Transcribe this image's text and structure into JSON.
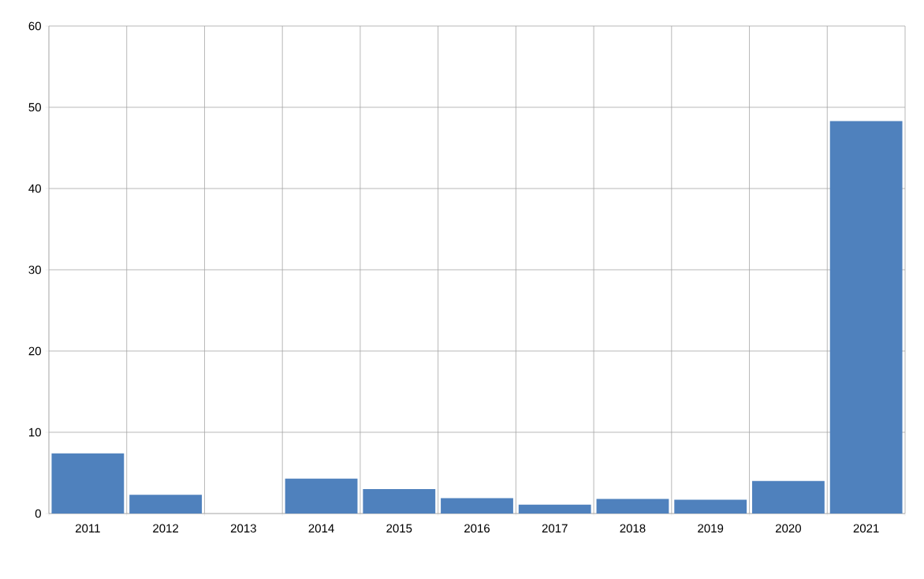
{
  "chart_data": {
    "type": "bar",
    "categories": [
      "2011",
      "2012",
      "2013",
      "2014",
      "2015",
      "2016",
      "2017",
      "2018",
      "2019",
      "2020",
      "2021"
    ],
    "values": [
      7.4,
      2.3,
      0,
      4.3,
      3.0,
      1.9,
      1.1,
      1.8,
      1.7,
      4.0,
      48.3
    ],
    "color": "#4f81bd",
    "ylim": [
      0,
      60
    ],
    "yticks": [
      0,
      10,
      20,
      30,
      40,
      50,
      60
    ],
    "grid": true
  }
}
